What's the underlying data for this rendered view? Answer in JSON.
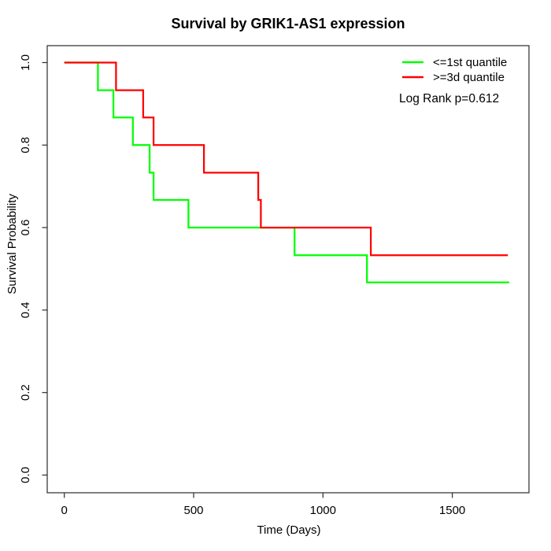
{
  "title": "Survival by GRIK1-AS1 expression",
  "axes": {
    "x": {
      "label": "Time (Days)",
      "ticks": [
        0,
        500,
        1000,
        1500
      ]
    },
    "y": {
      "label": "Survival Probability",
      "ticks": [
        "0.0",
        "0.2",
        "0.4",
        "0.6",
        "0.8",
        "1.0"
      ]
    }
  },
  "legend": {
    "items": [
      {
        "label": "<=1st quantile",
        "color": "#00ff00"
      },
      {
        "label": ">=3d quantile",
        "color": "#ff0000"
      }
    ],
    "note": "Log Rank p=0.612"
  },
  "chart_data": {
    "type": "line",
    "subtype": "kaplan_meier_step",
    "title": "Survival by GRIK1-AS1 expression",
    "xlabel": "Time (Days)",
    "ylabel": "Survival Probability",
    "xlim": [
      0,
      1790
    ],
    "ylim": [
      0,
      1.0
    ],
    "x_ticks": [
      0,
      500,
      1000,
      1500
    ],
    "y_ticks": [
      0.0,
      0.2,
      0.4,
      0.6,
      0.8,
      1.0
    ],
    "grid": false,
    "legend_position": "top-right",
    "annotation": "Log Rank p=0.612",
    "series": [
      {
        "name": "<=1st quantile",
        "color": "#00ff00",
        "start": [
          0,
          1.0
        ],
        "events": [
          [
            130,
            0.933
          ],
          [
            190,
            0.867
          ],
          [
            265,
            0.8
          ],
          [
            330,
            0.733
          ],
          [
            345,
            0.667
          ],
          [
            480,
            0.6
          ],
          [
            890,
            0.533
          ],
          [
            1170,
            0.467
          ]
        ],
        "end_time": 1720
      },
      {
        "name": ">=3d quantile",
        "color": "#ff0000",
        "start": [
          0,
          1.0
        ],
        "events": [
          [
            200,
            0.933
          ],
          [
            305,
            0.867
          ],
          [
            345,
            0.8
          ],
          [
            540,
            0.733
          ],
          [
            750,
            0.667
          ],
          [
            760,
            0.6
          ],
          [
            1185,
            0.533
          ]
        ],
        "end_time": 1715
      }
    ]
  }
}
